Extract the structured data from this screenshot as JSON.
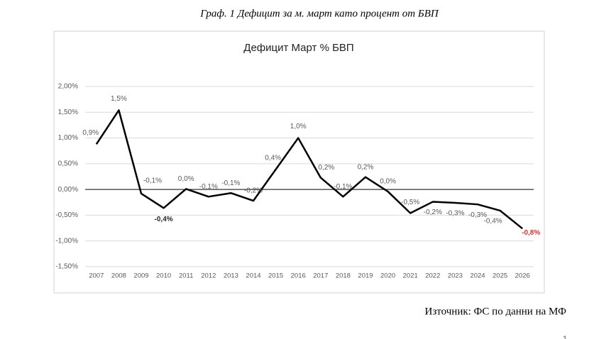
{
  "caption": "Граф. 1 Дефицит за м. март като процент от БВП",
  "chart_data": {
    "type": "line",
    "title": "Дефицит Март % БВП",
    "categories": [
      "2007",
      "2008",
      "2009",
      "2010",
      "2011",
      "2012",
      "2013",
      "2014",
      "2015",
      "2016",
      "2017",
      "2018",
      "2019",
      "2020",
      "2021",
      "2022",
      "2023",
      "2024",
      "2025",
      "2026"
    ],
    "series": [
      {
        "name": "Дефицит Март % БВП",
        "color": "#000000",
        "values": [
          0.88,
          1.54,
          -0.08,
          -0.36,
          0.01,
          -0.14,
          -0.07,
          -0.22,
          0.39,
          1.0,
          0.23,
          -0.14,
          0.24,
          -0.04,
          -0.46,
          -0.24,
          -0.26,
          -0.29,
          -0.41,
          -0.76
        ],
        "value_labels": [
          "0,9%",
          "1,5%",
          "-0,1%",
          "-0,4%",
          "0,0%",
          "-0,1%",
          "-0,1%",
          "-0,2%",
          "0,4%",
          "1,0%",
          "0,2%",
          "-0,1%",
          "0,2%",
          "0,0%",
          "-0,5%",
          "-0,2%",
          "-0,3%",
          "-0,3%",
          "-0,4%",
          "-0,8%"
        ],
        "value_label_colors": [
          "#595959",
          "#595959",
          "#595959",
          "#262626",
          "#595959",
          "#595959",
          "#595959",
          "#595959",
          "#595959",
          "#595959",
          "#595959",
          "#595959",
          "#595959",
          "#595959",
          "#595959",
          "#595959",
          "#595959",
          "#595959",
          "#595959",
          "#e0312f"
        ]
      }
    ],
    "ylim": [
      -1.5,
      2.0
    ],
    "yticks": [
      {
        "value": -1.5,
        "label": "-1,50%"
      },
      {
        "value": -1.0,
        "label": "-1,00%"
      },
      {
        "value": -0.5,
        "label": "-0,50%"
      },
      {
        "value": 0,
        "label": "0,00%"
      },
      {
        "value": 0.5,
        "label": "0,50%"
      },
      {
        "value": 1.0,
        "label": "1,00%"
      },
      {
        "value": 1.5,
        "label": "1,50%"
      },
      {
        "value": 2.0,
        "label": "2,00%"
      }
    ],
    "grid": true,
    "grid_color": "#d9d9d9",
    "zero_line_color": "#000000"
  },
  "source": "Източник: ФС по данни на МФ",
  "page_number": "1"
}
